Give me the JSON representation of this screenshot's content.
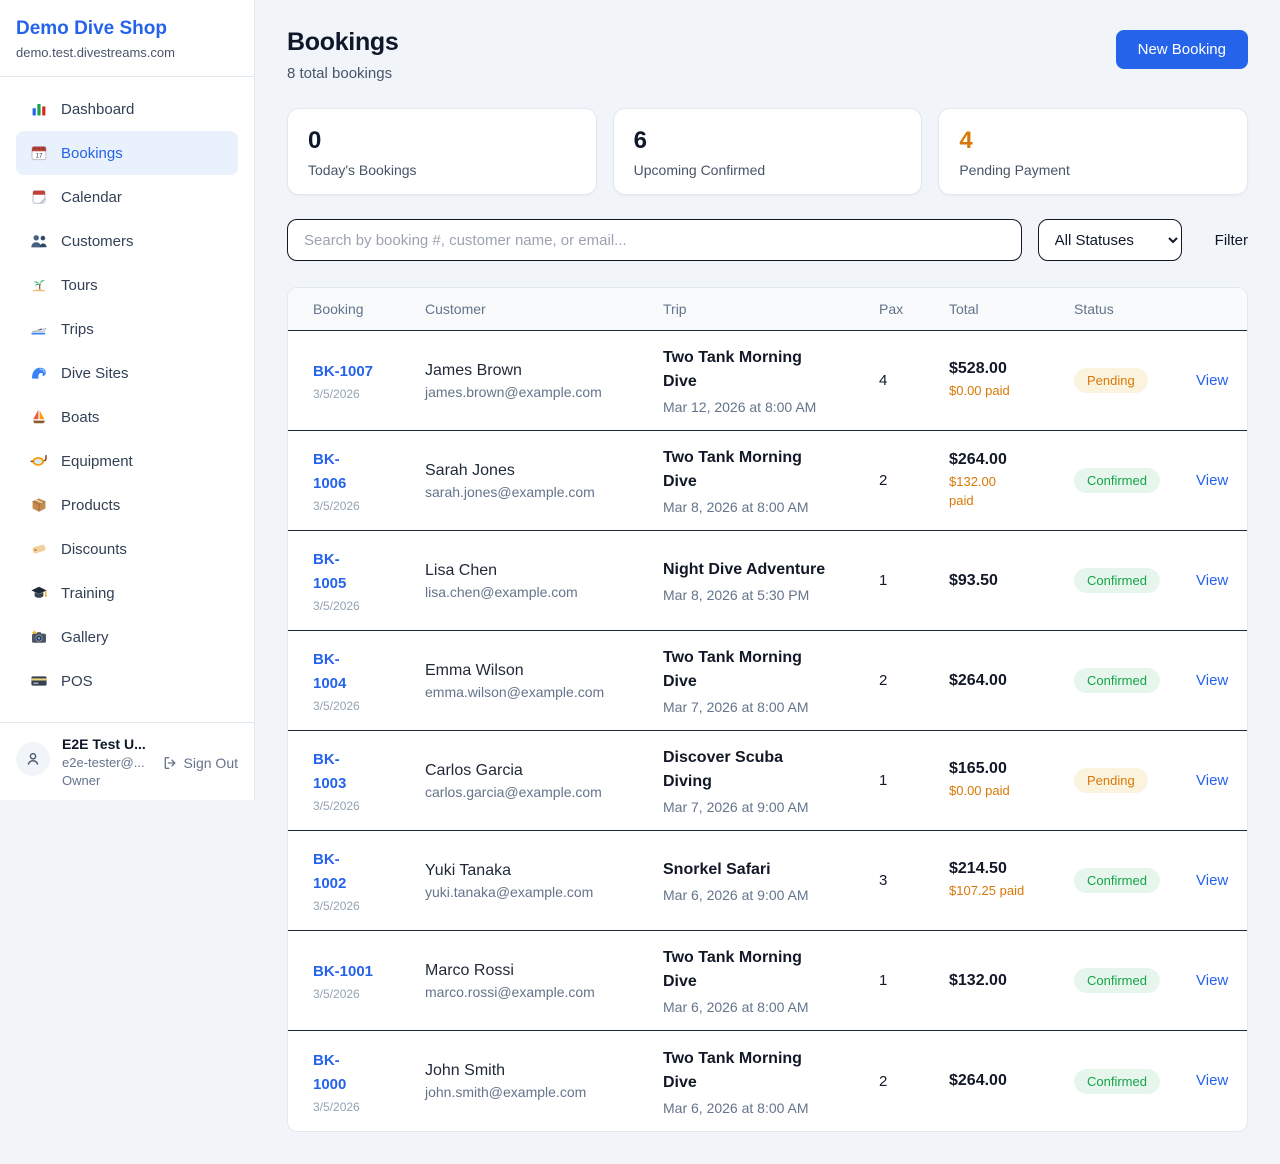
{
  "colors": {
    "accent": "#2563eb",
    "pending": "#d97706",
    "confirmed": "#16a34a"
  },
  "sidebar": {
    "title": "Demo Dive Shop",
    "domain": "demo.test.divestreams.com",
    "active_item": "Bookings",
    "items": [
      {
        "label": "Dashboard",
        "icon": "bar-chart-icon"
      },
      {
        "label": "Bookings",
        "icon": "calendar-date-icon"
      },
      {
        "label": "Calendar",
        "icon": "calendar-icon"
      },
      {
        "label": "Customers",
        "icon": "people-icon"
      },
      {
        "label": "Tours",
        "icon": "island-icon"
      },
      {
        "label": "Trips",
        "icon": "speedboat-icon"
      },
      {
        "label": "Dive Sites",
        "icon": "wave-icon"
      },
      {
        "label": "Boats",
        "icon": "sailboat-icon"
      },
      {
        "label": "Equipment",
        "icon": "diving-mask-icon"
      },
      {
        "label": "Products",
        "icon": "package-icon"
      },
      {
        "label": "Discounts",
        "icon": "tag-icon"
      },
      {
        "label": "Training",
        "icon": "graduation-cap-icon"
      },
      {
        "label": "Gallery",
        "icon": "camera-flash-icon"
      },
      {
        "label": "POS",
        "icon": "credit-card-icon"
      }
    ],
    "user": {
      "name": "E2E Test U...",
      "email": "e2e-tester@...",
      "role": "Owner",
      "sign_out_label": "Sign Out"
    }
  },
  "header": {
    "title": "Bookings",
    "subtitle": "8 total bookings",
    "new_booking_label": "New Booking"
  },
  "stats": [
    {
      "value": "0",
      "label": "Today's Bookings"
    },
    {
      "value": "6",
      "label": "Upcoming Confirmed"
    },
    {
      "value": "4",
      "label": "Pending Payment"
    }
  ],
  "filters": {
    "search_placeholder": "Search by booking #, customer name, or email...",
    "status_selected": "All Statuses",
    "filter_label": "Filter"
  },
  "table": {
    "columns": [
      "Booking",
      "Customer",
      "Trip",
      "Pax",
      "Total",
      "Status"
    ],
    "view_label": "View",
    "rows": [
      {
        "booking_id": "BK-1007",
        "booking_date": "3/5/2026",
        "customer_name": "James Brown",
        "customer_email": "james.brown@example.com",
        "trip_name": "Two Tank Morning\nDive",
        "trip_datetime": "Mar 12, 2026 at 8:00 AM",
        "pax": "4",
        "total": "$528.00",
        "paid": "$0.00 paid",
        "status": "Pending"
      },
      {
        "booking_id": "BK-\n1006",
        "booking_date": "3/5/2026",
        "customer_name": "Sarah Jones",
        "customer_email": "sarah.jones@example.com",
        "trip_name": "Two Tank Morning\nDive",
        "trip_datetime": "Mar 8, 2026 at 8:00 AM",
        "pax": "2",
        "total": "$264.00",
        "paid": "$132.00\npaid",
        "status": "Confirmed"
      },
      {
        "booking_id": "BK-\n1005",
        "booking_date": "3/5/2026",
        "customer_name": "Lisa Chen",
        "customer_email": "lisa.chen@example.com",
        "trip_name": "Night Dive Adventure",
        "trip_datetime": "Mar 8, 2026 at 5:30 PM",
        "pax": "1",
        "total": "$93.50",
        "paid": "",
        "status": "Confirmed"
      },
      {
        "booking_id": "BK-\n1004",
        "booking_date": "3/5/2026",
        "customer_name": "Emma Wilson",
        "customer_email": "emma.wilson@example.com",
        "trip_name": "Two Tank Morning\nDive",
        "trip_datetime": "Mar 7, 2026 at 8:00 AM",
        "pax": "2",
        "total": "$264.00",
        "paid": "",
        "status": "Confirmed"
      },
      {
        "booking_id": "BK-\n1003",
        "booking_date": "3/5/2026",
        "customer_name": "Carlos Garcia",
        "customer_email": "carlos.garcia@example.com",
        "trip_name": "Discover Scuba\nDiving",
        "trip_datetime": "Mar 7, 2026 at 9:00 AM",
        "pax": "1",
        "total": "$165.00",
        "paid": "$0.00 paid",
        "status": "Pending"
      },
      {
        "booking_id": "BK-\n1002",
        "booking_date": "3/5/2026",
        "customer_name": "Yuki Tanaka",
        "customer_email": "yuki.tanaka@example.com",
        "trip_name": "Snorkel Safari",
        "trip_datetime": "Mar 6, 2026 at 9:00 AM",
        "pax": "3",
        "total": "$214.50",
        "paid": "$107.25 paid",
        "status": "Confirmed"
      },
      {
        "booking_id": "BK-1001",
        "booking_date": "3/5/2026",
        "customer_name": "Marco Rossi",
        "customer_email": "marco.rossi@example.com",
        "trip_name": "Two Tank Morning\nDive",
        "trip_datetime": "Mar 6, 2026 at 8:00 AM",
        "pax": "1",
        "total": "$132.00",
        "paid": "",
        "status": "Confirmed"
      },
      {
        "booking_id": "BK-\n1000",
        "booking_date": "3/5/2026",
        "customer_name": "John Smith",
        "customer_email": "john.smith@example.com",
        "trip_name": "Two Tank Morning\nDive",
        "trip_datetime": "Mar 6, 2026 at 8:00 AM",
        "pax": "2",
        "total": "$264.00",
        "paid": "",
        "status": "Confirmed"
      }
    ]
  }
}
